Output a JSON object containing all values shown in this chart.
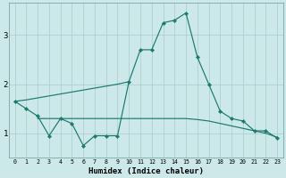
{
  "x": [
    0,
    1,
    2,
    3,
    4,
    5,
    6,
    7,
    8,
    9,
    10,
    11,
    12,
    13,
    14,
    15,
    16,
    17,
    18,
    19,
    20,
    21,
    22,
    23
  ],
  "line_main": [
    1.65,
    1.5,
    1.35,
    0.95,
    1.3,
    1.2,
    0.75,
    0.95,
    0.95,
    0.95,
    2.05,
    2.7,
    2.7,
    3.25,
    3.3,
    3.45,
    2.55,
    2.0,
    1.45,
    1.3,
    1.25,
    1.05,
    1.05,
    0.9
  ],
  "line_upper": [
    1.65,
    1.68,
    1.72,
    1.76,
    1.8,
    1.84,
    1.88,
    1.92,
    1.96,
    2.0,
    2.05,
    null,
    null,
    null,
    null,
    null,
    null,
    null,
    null,
    null,
    null,
    null,
    null,
    null
  ],
  "line_lower": [
    null,
    null,
    1.3,
    1.3,
    1.3,
    1.3,
    1.3,
    1.3,
    1.3,
    1.3,
    1.3,
    1.3,
    1.3,
    1.3,
    1.3,
    1.3,
    1.28,
    1.25,
    1.2,
    1.15,
    1.1,
    1.05,
    1.0,
    0.92
  ],
  "line_color": "#1a7a6e",
  "bg_color": "#cce8e8",
  "grid_color": "#a8cccc",
  "xlabel": "Humidex (Indice chaleur)",
  "xlim": [
    -0.5,
    23.5
  ],
  "ylim": [
    0.5,
    3.65
  ],
  "yticks": [
    1,
    2,
    3
  ],
  "xticks": [
    0,
    1,
    2,
    3,
    4,
    5,
    6,
    7,
    8,
    9,
    10,
    11,
    12,
    13,
    14,
    15,
    16,
    17,
    18,
    19,
    20,
    21,
    22,
    23
  ]
}
